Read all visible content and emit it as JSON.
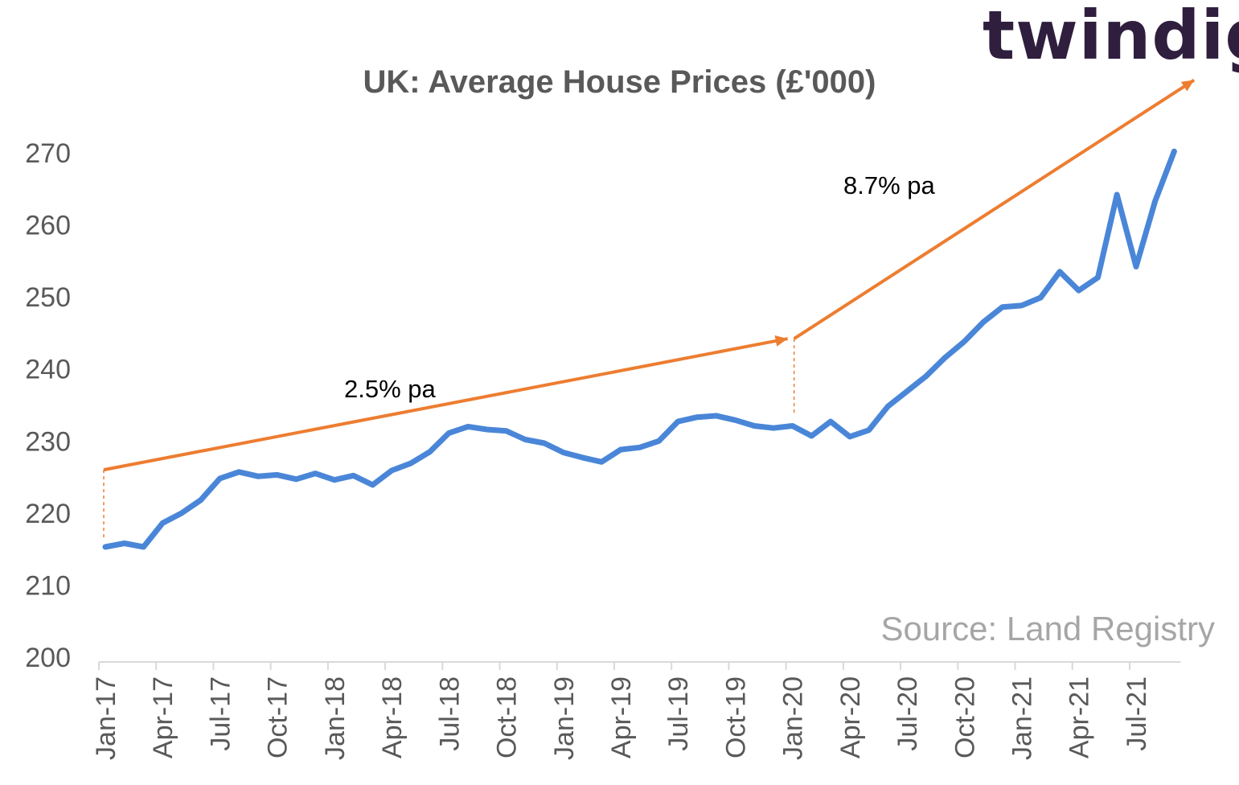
{
  "brand": {
    "text_a": "twindi",
    "text_b": "g",
    "color": "#2f1e3d",
    "accent": "#f0a02a"
  },
  "source": "Source: Land Registry",
  "chart_data": {
    "type": "line",
    "title": "UK: Average House Prices (£'000)",
    "xlabel": "",
    "ylabel": "",
    "ylim": [
      200,
      270
    ],
    "yticks": [
      200,
      210,
      220,
      230,
      240,
      250,
      260,
      270
    ],
    "grid": false,
    "legend": "none",
    "tick_labels": [
      "Jan-17",
      "Apr-17",
      "Jul-17",
      "Oct-17",
      "Jan-18",
      "Apr-18",
      "Jul-18",
      "Oct-18",
      "Jan-19",
      "Apr-19",
      "Jul-19",
      "Oct-19",
      "Jan-20",
      "Apr-20",
      "Jul-20",
      "Oct-20",
      "Jan-21",
      "Apr-21",
      "Jul-21"
    ],
    "series": [
      {
        "color": "#4a86d8",
        "x": [
          "Jan-17",
          "Feb-17",
          "Mar-17",
          "Apr-17",
          "May-17",
          "Jun-17",
          "Jul-17",
          "Aug-17",
          "Sep-17",
          "Oct-17",
          "Nov-17",
          "Dec-17",
          "Jan-18",
          "Feb-18",
          "Mar-18",
          "Apr-18",
          "May-18",
          "Jun-18",
          "Jul-18",
          "Aug-18",
          "Sep-18",
          "Oct-18",
          "Nov-18",
          "Dec-18",
          "Jan-19",
          "Feb-19",
          "Mar-19",
          "Apr-19",
          "May-19",
          "Jun-19",
          "Jul-19",
          "Aug-19",
          "Sep-19",
          "Oct-19",
          "Nov-19",
          "Dec-19",
          "Jan-20",
          "Feb-20",
          "Mar-20",
          "Apr-20",
          "May-20",
          "Jun-20",
          "Jul-20",
          "Aug-20",
          "Sep-20",
          "Oct-20",
          "Nov-20",
          "Dec-20",
          "Jan-21",
          "Feb-21",
          "Mar-21",
          "Apr-21",
          "May-21",
          "Jun-21",
          "Jul-21",
          "Aug-21",
          "Sep-21"
        ],
        "values": [
          215.3,
          215.8,
          215.3,
          218.6,
          220.0,
          221.8,
          224.8,
          225.7,
          225.1,
          225.3,
          224.7,
          225.5,
          224.6,
          225.2,
          223.9,
          225.9,
          226.9,
          228.5,
          231.1,
          232.0,
          231.6,
          231.4,
          230.2,
          229.7,
          228.4,
          227.7,
          227.1,
          228.8,
          229.1,
          230.0,
          232.7,
          233.3,
          233.5,
          232.9,
          232.1,
          231.8,
          232.1,
          230.7,
          232.7,
          230.6,
          231.5,
          234.8,
          236.9,
          239.0,
          241.6,
          243.8,
          246.5,
          248.6,
          248.8,
          249.9,
          253.5,
          250.9,
          252.7,
          264.2,
          254.2,
          263.3,
          270.2
        ]
      }
    ],
    "annotations": [
      {
        "text": "2.5% pa",
        "from": [
          "Jan-17",
          226.0
        ],
        "to": [
          "Jan-20",
          244.2
        ]
      },
      {
        "text": "8.7% pa",
        "from": [
          "Jan-20",
          244.2
        ],
        "to": [
          "Oct-21",
          280.1
        ]
      }
    ],
    "annotation_color": "#ed7d31"
  }
}
